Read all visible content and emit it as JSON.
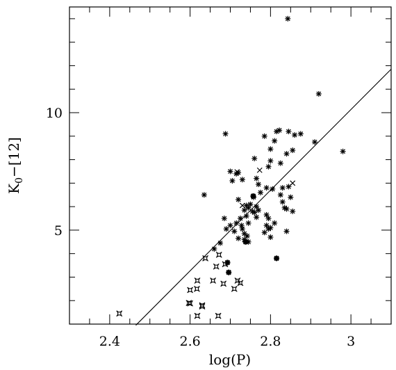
{
  "chart_data": {
    "type": "scatter",
    "title": "",
    "xlabel": "log(P)",
    "ylabel": "K0−[12]",
    "ylabel_main": "K",
    "ylabel_sub": "0",
    "ylabel_rest": "−[12]",
    "xlim": [
      2.3,
      3.1
    ],
    "ylim": [
      1.0,
      14.5
    ],
    "x_ticks": [
      2.4,
      2.6,
      2.8,
      3.0
    ],
    "x_tick_labels": [
      "2.4",
      "2.6",
      "2.8",
      "3"
    ],
    "y_ticks": [
      5,
      10
    ],
    "y_tick_labels": [
      "5",
      "10"
    ],
    "grid": false,
    "legend": "none",
    "fit_line": {
      "x": [
        2.465,
        3.1
      ],
      "y": [
        0.95,
        11.85
      ]
    },
    "series": [
      {
        "marker": "asterisk",
        "points": [
          [
            2.843,
            14.0
          ],
          [
            2.92,
            10.8
          ],
          [
            2.98,
            8.35
          ],
          [
            2.91,
            8.75
          ],
          [
            2.688,
            9.1
          ],
          [
            2.815,
            9.2
          ],
          [
            2.822,
            9.25
          ],
          [
            2.845,
            9.2
          ],
          [
            2.86,
            9.05
          ],
          [
            2.875,
            9.1
          ],
          [
            2.785,
            9.0
          ],
          [
            2.81,
            8.8
          ],
          [
            2.8,
            8.45
          ],
          [
            2.84,
            8.25
          ],
          [
            2.855,
            8.4
          ],
          [
            2.795,
            7.7
          ],
          [
            2.76,
            8.05
          ],
          [
            2.825,
            7.85
          ],
          [
            2.8,
            7.95
          ],
          [
            2.72,
            7.45
          ],
          [
            2.705,
            7.1
          ],
          [
            2.73,
            7.15
          ],
          [
            2.765,
            7.2
          ],
          [
            2.77,
            6.95
          ],
          [
            2.79,
            6.8
          ],
          [
            2.805,
            6.75
          ],
          [
            2.83,
            6.8
          ],
          [
            2.845,
            6.85
          ],
          [
            2.825,
            6.5
          ],
          [
            2.85,
            6.4
          ],
          [
            2.635,
            6.5
          ],
          [
            2.758,
            6.4
          ],
          [
            2.775,
            6.6
          ],
          [
            2.72,
            6.3
          ],
          [
            2.74,
            6.05
          ],
          [
            2.75,
            6.1
          ],
          [
            2.745,
            5.95
          ],
          [
            2.735,
            5.85
          ],
          [
            2.755,
            5.8
          ],
          [
            2.765,
            6.0
          ],
          [
            2.77,
            5.85
          ],
          [
            2.725,
            5.5
          ],
          [
            2.74,
            5.6
          ],
          [
            2.76,
            5.75
          ],
          [
            2.765,
            5.55
          ],
          [
            2.79,
            5.65
          ],
          [
            2.795,
            5.5
          ],
          [
            2.81,
            5.3
          ],
          [
            2.83,
            6.2
          ],
          [
            2.84,
            5.9
          ],
          [
            2.835,
            5.95
          ],
          [
            2.855,
            5.8
          ],
          [
            2.685,
            5.5
          ],
          [
            2.7,
            5.2
          ],
          [
            2.715,
            5.3
          ],
          [
            2.728,
            5.2
          ],
          [
            2.745,
            5.3
          ],
          [
            2.79,
            5.2
          ],
          [
            2.795,
            5.05
          ],
          [
            2.8,
            5.1
          ],
          [
            2.69,
            5.05
          ],
          [
            2.71,
            4.95
          ],
          [
            2.73,
            5.05
          ],
          [
            2.735,
            4.85
          ],
          [
            2.742,
            4.75
          ],
          [
            2.785,
            4.9
          ],
          [
            2.84,
            4.95
          ],
          [
            2.66,
            4.2
          ],
          [
            2.675,
            4.45
          ],
          [
            2.72,
            4.65
          ],
          [
            2.735,
            4.6
          ],
          [
            2.745,
            4.5
          ],
          [
            2.8,
            4.7
          ],
          [
            2.7,
            7.5
          ],
          [
            2.715,
            7.4
          ]
        ]
      },
      {
        "marker": "cross",
        "points": [
          [
            2.717,
            7.48
          ],
          [
            2.773,
            7.55
          ],
          [
            2.855,
            7.0
          ],
          [
            2.73,
            6.05
          ]
        ]
      },
      {
        "marker": "bold-star",
        "points": [
          [
            2.757,
            6.45
          ],
          [
            2.738,
            4.5
          ],
          [
            2.693,
            3.62
          ],
          [
            2.696,
            3.2
          ],
          [
            2.815,
            3.8
          ]
        ]
      },
      {
        "marker": "open-star",
        "points": [
          [
            2.638,
            3.8
          ],
          [
            2.672,
            3.95
          ],
          [
            2.687,
            3.55
          ],
          [
            2.665,
            3.45
          ],
          [
            2.657,
            2.85
          ],
          [
            2.683,
            2.72
          ],
          [
            2.71,
            2.5
          ],
          [
            2.718,
            2.85
          ],
          [
            2.725,
            2.75
          ],
          [
            2.618,
            2.85
          ],
          [
            2.6,
            2.45
          ],
          [
            2.617,
            2.5
          ],
          [
            2.597,
            1.9
          ],
          [
            2.6,
            1.88
          ],
          [
            2.63,
            1.75
          ],
          [
            2.63,
            1.8
          ],
          [
            2.618,
            1.35
          ],
          [
            2.67,
            1.35
          ],
          [
            2.424,
            1.45
          ]
        ]
      }
    ]
  }
}
